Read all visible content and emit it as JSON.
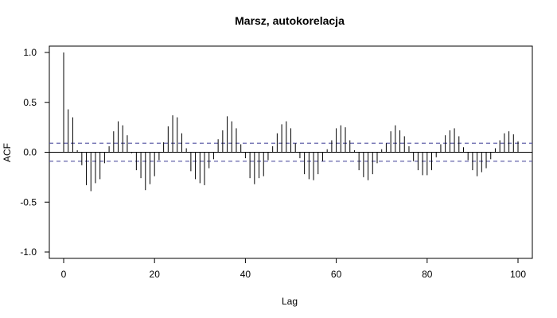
{
  "chart_data": {
    "type": "bar",
    "title": "Marsz, autokorelacja",
    "xlabel": "Lag",
    "ylabel": "ACF",
    "xlim": [
      0,
      100
    ],
    "ylim": [
      -1.0,
      1.0
    ],
    "x_ticks": [
      0,
      20,
      40,
      60,
      80,
      100
    ],
    "x_tick_labels": [
      "0",
      "20",
      "40",
      "60",
      "80",
      "100"
    ],
    "y_ticks": [
      -1.0,
      -0.5,
      0.0,
      0.5,
      1.0
    ],
    "y_tick_labels": [
      "-1.0",
      "-0.5",
      "0.0",
      "0.5",
      "1.0"
    ],
    "confidence_bounds": [
      0.09,
      -0.09
    ],
    "confidence_color": "#5050a0",
    "bar_color": "#000000",
    "lags": [
      0,
      1,
      2,
      3,
      4,
      5,
      6,
      7,
      8,
      9,
      10,
      11,
      12,
      13,
      14,
      15,
      16,
      17,
      18,
      19,
      20,
      21,
      22,
      23,
      24,
      25,
      26,
      27,
      28,
      29,
      30,
      31,
      32,
      33,
      34,
      35,
      36,
      37,
      38,
      39,
      40,
      41,
      42,
      43,
      44,
      45,
      46,
      47,
      48,
      49,
      50,
      51,
      52,
      53,
      54,
      55,
      56,
      57,
      58,
      59,
      60,
      61,
      62,
      63,
      64,
      65,
      66,
      67,
      68,
      69,
      70,
      71,
      72,
      73,
      74,
      75,
      76,
      77,
      78,
      79,
      80,
      81,
      82,
      83,
      84,
      85,
      86,
      87,
      88,
      89,
      90,
      91,
      92,
      93,
      94,
      95,
      96,
      97,
      98,
      99,
      100
    ],
    "acf": [
      1.0,
      0.43,
      0.35,
      0.02,
      -0.13,
      -0.33,
      -0.39,
      -0.31,
      -0.27,
      -0.11,
      0.06,
      0.21,
      0.31,
      0.27,
      0.17,
      -0.01,
      -0.18,
      -0.26,
      -0.38,
      -0.32,
      -0.24,
      -0.08,
      0.1,
      0.26,
      0.37,
      0.35,
      0.19,
      0.04,
      -0.19,
      -0.27,
      -0.31,
      -0.33,
      -0.16,
      -0.07,
      0.13,
      0.22,
      0.36,
      0.31,
      0.24,
      0.08,
      -0.06,
      -0.26,
      -0.32,
      -0.26,
      -0.24,
      -0.08,
      0.06,
      0.19,
      0.28,
      0.31,
      0.24,
      0.09,
      -0.06,
      -0.22,
      -0.27,
      -0.28,
      -0.22,
      -0.09,
      0.03,
      0.12,
      0.24,
      0.27,
      0.25,
      0.12,
      0.02,
      -0.18,
      -0.25,
      -0.28,
      -0.22,
      -0.11,
      0.03,
      0.09,
      0.21,
      0.27,
      0.22,
      0.16,
      0.06,
      -0.09,
      -0.18,
      -0.23,
      -0.23,
      -0.18,
      -0.05,
      0.08,
      0.17,
      0.22,
      0.24,
      0.16,
      0.05,
      -0.08,
      -0.18,
      -0.24,
      -0.2,
      -0.16,
      -0.07,
      0.04,
      0.12,
      0.19,
      0.21,
      0.18,
      0.11
    ]
  }
}
